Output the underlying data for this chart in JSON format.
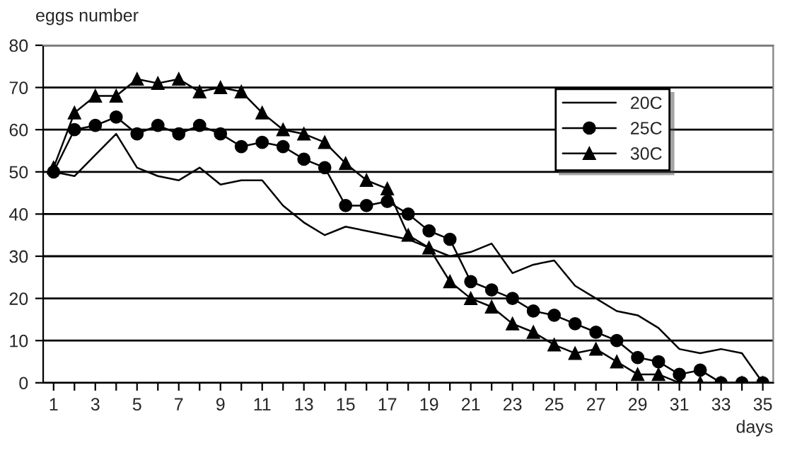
{
  "chart_data": {
    "type": "line",
    "xlabel": "days",
    "ylabel": "eggs number",
    "x": [
      1,
      2,
      3,
      4,
      5,
      6,
      7,
      8,
      9,
      10,
      11,
      12,
      13,
      14,
      15,
      16,
      17,
      18,
      19,
      20,
      21,
      22,
      23,
      24,
      25,
      26,
      27,
      28,
      29,
      30,
      31,
      32,
      33,
      34,
      35
    ],
    "series": [
      {
        "name": "20C",
        "color": "#000000",
        "marker": "none",
        "values": [
          50,
          49,
          54,
          59,
          51,
          49,
          48,
          51,
          47,
          48,
          48,
          42,
          38,
          35,
          37,
          36,
          35,
          34,
          32,
          30,
          31,
          33,
          26,
          28,
          29,
          23,
          20,
          17,
          16,
          13,
          8,
          7,
          8,
          7,
          0
        ]
      },
      {
        "name": "25C",
        "color": "#000000",
        "marker": "circle",
        "values": [
          50,
          60,
          61,
          63,
          59,
          61,
          59,
          61,
          59,
          56,
          57,
          56,
          53,
          51,
          42,
          42,
          43,
          40,
          36,
          34,
          24,
          22,
          20,
          17,
          16,
          14,
          12,
          10,
          6,
          5,
          2,
          3,
          0,
          0,
          0
        ]
      },
      {
        "name": "30C",
        "color": "#000000",
        "marker": "triangle",
        "values": [
          51,
          64,
          68,
          68,
          72,
          71,
          72,
          69,
          70,
          69,
          64,
          60,
          59,
          57,
          52,
          48,
          46,
          35,
          32,
          24,
          20,
          18,
          14,
          12,
          9,
          7,
          8,
          5,
          2,
          2,
          0,
          0,
          0,
          0,
          0
        ]
      }
    ],
    "xlim": [
      0.5,
      35.5
    ],
    "xticks": [
      1,
      {
        "value": 2,
        "label": null
      },
      3,
      {
        "value": 4,
        "label": null
      },
      5,
      {
        "value": 6,
        "label": null
      },
      7,
      {
        "value": 8,
        "label": null
      },
      9,
      {
        "value": 10,
        "label": null
      },
      11,
      {
        "value": 12,
        "label": null
      },
      13,
      {
        "value": 14,
        "label": null
      },
      15,
      {
        "value": 16,
        "label": null
      },
      17,
      {
        "value": 18,
        "label": null
      },
      19,
      {
        "value": 20,
        "label": null
      },
      21,
      {
        "value": 22,
        "label": null
      },
      23,
      {
        "value": 24,
        "label": null
      },
      25,
      {
        "value": 26,
        "label": null
      },
      27,
      {
        "value": 28,
        "label": null
      },
      29,
      {
        "value": 30,
        "label": null
      },
      31,
      {
        "value": 32,
        "label": null
      },
      33,
      {
        "value": 34,
        "label": null
      },
      35
    ],
    "ylim": [
      0,
      80
    ],
    "yticks": [
      0,
      10,
      20,
      30,
      40,
      50,
      60,
      70,
      80
    ],
    "grid": "y",
    "legend": "right",
    "line_style": "solid"
  }
}
